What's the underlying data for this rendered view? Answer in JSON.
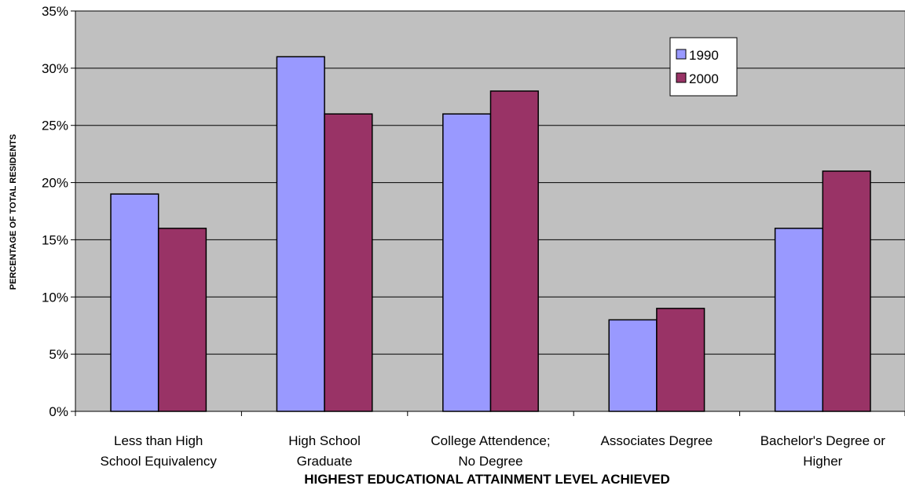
{
  "chart_data": {
    "type": "bar",
    "categories": [
      [
        "Less than High",
        "School Equivalency"
      ],
      [
        "High School",
        "Graduate"
      ],
      [
        "College Attendence;",
        "No Degree"
      ],
      [
        "Associates Degree"
      ],
      [
        "Bachelor's Degree or",
        "Higher"
      ]
    ],
    "series": [
      {
        "name": "1990",
        "color": "#9999ff",
        "values": [
          19,
          31,
          26,
          8,
          16
        ]
      },
      {
        "name": "2000",
        "color": "#993366",
        "values": [
          16,
          26,
          28,
          9,
          21
        ]
      }
    ],
    "xlabel": "HIGHEST EDUCATIONAL ATTAINMENT LEVEL ACHIEVED",
    "ylabel": "PERCENTAGE OF TOTAL RESIDENTS",
    "ylim": [
      0,
      35
    ],
    "yticks": [
      "0%",
      "5%",
      "10%",
      "15%",
      "20%",
      "25%",
      "30%",
      "35%"
    ],
    "grid": true,
    "plot_background": "#c0c0c0",
    "legend_position": "top-right"
  }
}
